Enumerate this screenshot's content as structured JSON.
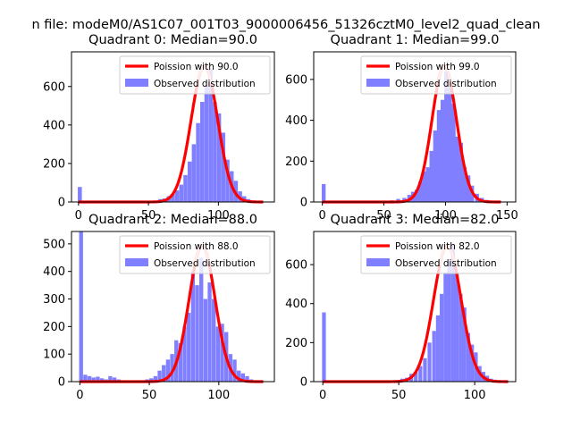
{
  "figure": {
    "suptitle": "n file: modeM0/AS1C07_001T03_9000006456_51326cztM0_level2_quad_clean"
  },
  "colors": {
    "bar": "#7f7fff",
    "curve": "#ff0000",
    "curve_fade": "#ffaaaa",
    "axis": "#000000"
  },
  "chart_data": [
    {
      "type": "bar",
      "title": "Quadrant 0: Median=90.0",
      "legend": [
        "Poission with 90.0",
        "Observed distribution"
      ],
      "legend_position": "top-right",
      "xlim": [
        -5,
        140
      ],
      "ylim": [
        0,
        780
      ],
      "xticks": [
        0,
        50,
        100
      ],
      "yticks": [
        0,
        200,
        400,
        600
      ],
      "median": 90.0,
      "bin_width": 2.9,
      "bins": [
        [
          -0.5,
          78
        ],
        [
          57,
          15
        ],
        [
          60,
          18
        ],
        [
          63,
          30
        ],
        [
          66,
          40
        ],
        [
          69,
          60
        ],
        [
          72,
          90
        ],
        [
          75,
          140
        ],
        [
          78,
          210
        ],
        [
          81,
          300
        ],
        [
          84,
          410
        ],
        [
          87,
          520
        ],
        [
          90,
          600
        ],
        [
          93,
          690
        ],
        [
          96,
          520
        ],
        [
          99,
          460
        ],
        [
          102,
          360
        ],
        [
          105,
          220
        ],
        [
          108,
          160
        ],
        [
          111,
          110
        ],
        [
          114,
          55
        ],
        [
          117,
          30
        ],
        [
          120,
          15
        ],
        [
          123,
          8
        ],
        [
          126,
          5
        ]
      ],
      "poisson_range": [
        0,
        132
      ]
    },
    {
      "type": "bar",
      "title": "Quadrant 1: Median=99.0",
      "legend": [
        "Poission with 99.0",
        "Observed distribution"
      ],
      "legend_position": "top-right",
      "xlim": [
        -7,
        157
      ],
      "ylim": [
        0,
        735
      ],
      "xticks": [
        0,
        50,
        100,
        150
      ],
      "yticks": [
        0,
        200,
        400,
        600
      ],
      "median": 99.0,
      "bin_width": 3.2,
      "bins": [
        [
          -0.5,
          88
        ],
        [
          50,
          5
        ],
        [
          55,
          8
        ],
        [
          60,
          15
        ],
        [
          65,
          20
        ],
        [
          69,
          35
        ],
        [
          72,
          50
        ],
        [
          75,
          60
        ],
        [
          78,
          100
        ],
        [
          81,
          150
        ],
        [
          84,
          170
        ],
        [
          87,
          250
        ],
        [
          90,
          350
        ],
        [
          93,
          450
        ],
        [
          96,
          500
        ],
        [
          99,
          640
        ],
        [
          102,
          560
        ],
        [
          105,
          480
        ],
        [
          108,
          320
        ],
        [
          111,
          290
        ],
        [
          114,
          170
        ],
        [
          117,
          130
        ],
        [
          120,
          80
        ],
        [
          124,
          40
        ],
        [
          128,
          20
        ],
        [
          132,
          10
        ],
        [
          136,
          5
        ],
        [
          140,
          3
        ]
      ],
      "poisson_range": [
        0,
        145
      ]
    },
    {
      "type": "bar",
      "title": "Quadrant 2: Median=88.0",
      "legend": [
        "Poission with 88.0",
        "Observed distribution"
      ],
      "legend_position": "top-right",
      "xlim": [
        -6,
        140
      ],
      "ylim": [
        0,
        545
      ],
      "xticks": [
        0,
        50,
        100
      ],
      "yticks": [
        0,
        100,
        200,
        300,
        400,
        500
      ],
      "median": 88.0,
      "bin_width": 2.8,
      "bins": [
        [
          -0.5,
          545
        ],
        [
          2.5,
          25
        ],
        [
          5.5,
          20
        ],
        [
          8.5,
          15
        ],
        [
          11.5,
          18
        ],
        [
          14.5,
          12
        ],
        [
          17.5,
          8
        ],
        [
          20.5,
          20
        ],
        [
          23.5,
          15
        ],
        [
          26.5,
          8
        ],
        [
          30,
          5
        ],
        [
          36,
          3
        ],
        [
          42,
          5
        ],
        [
          47,
          8
        ],
        [
          50,
          12
        ],
        [
          53,
          20
        ],
        [
          56,
          40
        ],
        [
          59,
          60
        ],
        [
          62,
          80
        ],
        [
          65,
          100
        ],
        [
          68,
          150
        ],
        [
          71,
          140
        ],
        [
          74,
          200
        ],
        [
          77,
          250
        ],
        [
          80,
          400
        ],
        [
          83,
          350
        ],
        [
          86,
          450
        ],
        [
          89,
          300
        ],
        [
          92,
          360
        ],
        [
          95,
          300
        ],
        [
          98,
          200
        ],
        [
          101,
          210
        ],
        [
          104,
          180
        ],
        [
          107,
          100
        ],
        [
          110,
          80
        ],
        [
          113,
          40
        ],
        [
          116,
          30
        ],
        [
          119,
          20
        ],
        [
          122,
          8
        ],
        [
          125,
          5
        ],
        [
          128,
          3
        ]
      ],
      "poisson_range": [
        0,
        132
      ]
    },
    {
      "type": "bar",
      "title": "Quadrant 3: Median=82.0",
      "legend": [
        "Poission with 82.0",
        "Observed distribution"
      ],
      "legend_position": "top-right",
      "xlim": [
        -6,
        127
      ],
      "ylim": [
        0,
        770
      ],
      "xticks": [
        0,
        50,
        100
      ],
      "yticks": [
        0,
        200,
        400,
        600
      ],
      "median": 82.0,
      "bin_width": 2.5,
      "bins": [
        [
          -0.5,
          355
        ],
        [
          45,
          5
        ],
        [
          48,
          8
        ],
        [
          51,
          15
        ],
        [
          54,
          20
        ],
        [
          57,
          40
        ],
        [
          60,
          50
        ],
        [
          63,
          80
        ],
        [
          66,
          120
        ],
        [
          69,
          200
        ],
        [
          72,
          260
        ],
        [
          74.5,
          340
        ],
        [
          77,
          450
        ],
        [
          79.5,
          560
        ],
        [
          82,
          620
        ],
        [
          84.5,
          700
        ],
        [
          87,
          560
        ],
        [
          89.5,
          450
        ],
        [
          92,
          380
        ],
        [
          94.5,
          250
        ],
        [
          97,
          190
        ],
        [
          99.5,
          150
        ],
        [
          102,
          80
        ],
        [
          104.5,
          50
        ],
        [
          107,
          30
        ],
        [
          109.5,
          15
        ],
        [
          112,
          10
        ],
        [
          114.5,
          5
        ]
      ],
      "poisson_range": [
        0,
        122
      ]
    }
  ]
}
